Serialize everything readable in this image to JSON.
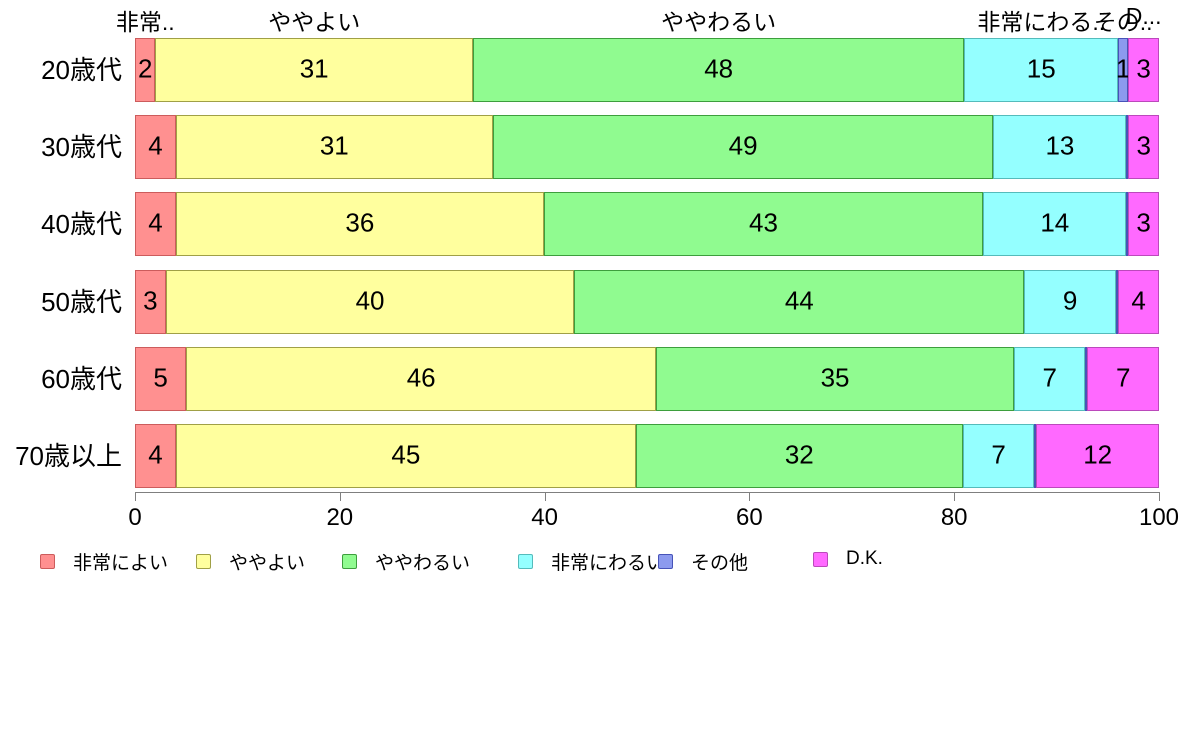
{
  "chart_data": {
    "type": "bar",
    "orientation": "horizontal",
    "stacked": true,
    "title": "",
    "categories": [
      "20歳代",
      "30歳代",
      "40歳代",
      "50歳代",
      "60歳代",
      "70歳以上"
    ],
    "series": [
      {
        "name": "非常によい",
        "color": "#FF9090",
        "border": "#CC5C5C",
        "values": [
          2,
          4,
          4,
          3,
          5,
          4
        ]
      },
      {
        "name": "ややよい",
        "color": "#FFFF9E",
        "border": "#A0A046",
        "values": [
          31,
          31,
          36,
          40,
          46,
          45
        ]
      },
      {
        "name": "ややわるい",
        "color": "#90FB90",
        "border": "#3D9E3D",
        "values": [
          48,
          49,
          43,
          44,
          35,
          32
        ]
      },
      {
        "name": "非常にわるい",
        "color": "#94FFFF",
        "border": "#55BBBB",
        "values": [
          15,
          13,
          14,
          9,
          7,
          7
        ]
      },
      {
        "name": "その他",
        "color": "#8C9AEE",
        "border": "#4753B8",
        "values": [
          1,
          0,
          0,
          0,
          0,
          0
        ]
      },
      {
        "name": "D.K.",
        "color": "#FF69FF",
        "border": "#BB49BB",
        "values": [
          3,
          3,
          3,
          4,
          7,
          12
        ]
      }
    ],
    "x_axis": {
      "min": 0,
      "max": 100,
      "ticks": [
        0,
        20,
        40,
        60,
        80,
        100
      ]
    },
    "top_labels": [
      {
        "text": "非常..",
        "center_pct": 1
      },
      {
        "text": "ややよい",
        "center_pct": 17.5
      },
      {
        "text": "ややわるい",
        "center_pct": 57
      },
      {
        "text": "非常にわる..",
        "center_pct": 88.5
      },
      {
        "text": "その..",
        "center_pct": 96.5
      },
      {
        "text": "D...",
        "center_pct": 98.5
      }
    ],
    "legend": {
      "position": "bottom",
      "labels": [
        "非常によい",
        "ややよい",
        "ややわるい",
        "非常にわるい",
        "その他",
        "D.K."
      ]
    }
  },
  "colors": {
    "axis": "#7F7F7F",
    "text": "#000000",
    "background": "#FFFFFF"
  }
}
